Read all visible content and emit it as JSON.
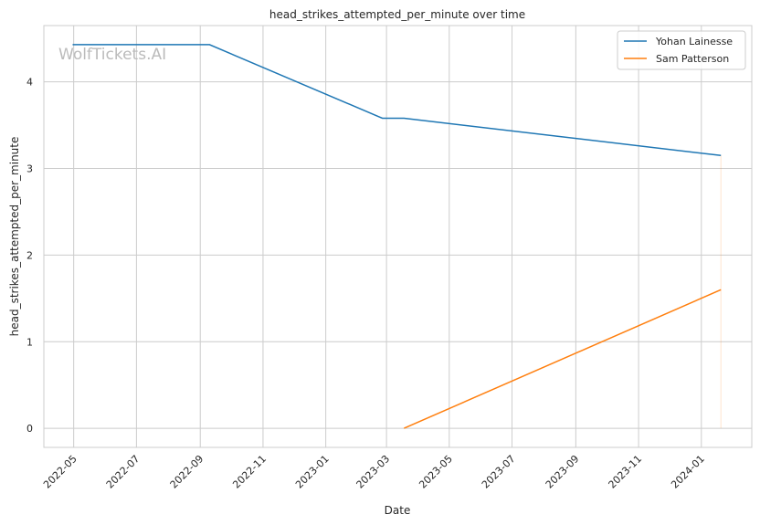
{
  "chart_data": {
    "type": "line",
    "title": "head_strikes_attempted_per_minute over time",
    "xlabel": "Date",
    "ylabel": "head_strikes_attempted_per_minute",
    "watermark": "WolfTickets.AI",
    "xlim": [
      "2022-04-02",
      "2024-02-19"
    ],
    "ylim": [
      -0.22,
      4.65
    ],
    "x_ticks": [
      "2022-05",
      "2022-07",
      "2022-09",
      "2022-11",
      "2023-01",
      "2023-03",
      "2023-05",
      "2023-07",
      "2023-09",
      "2023-11",
      "2024-01"
    ],
    "y_ticks": [
      "0",
      "1",
      "2",
      "3",
      "4"
    ],
    "grid": true,
    "legend_position": "top-right",
    "series": [
      {
        "name": "Yohan Lainesse",
        "color": "#1f77b4",
        "x": [
          "2022-04-30",
          "2022-09-10",
          "2023-02-25",
          "2023-03-18",
          "2024-01-20"
        ],
        "y": [
          4.43,
          4.43,
          3.58,
          3.58,
          3.15
        ]
      },
      {
        "name": "Sam Patterson",
        "color": "#ff7f0e",
        "x": [
          "2023-03-18",
          "2024-01-20"
        ],
        "y": [
          0.0,
          1.6
        ]
      }
    ]
  }
}
